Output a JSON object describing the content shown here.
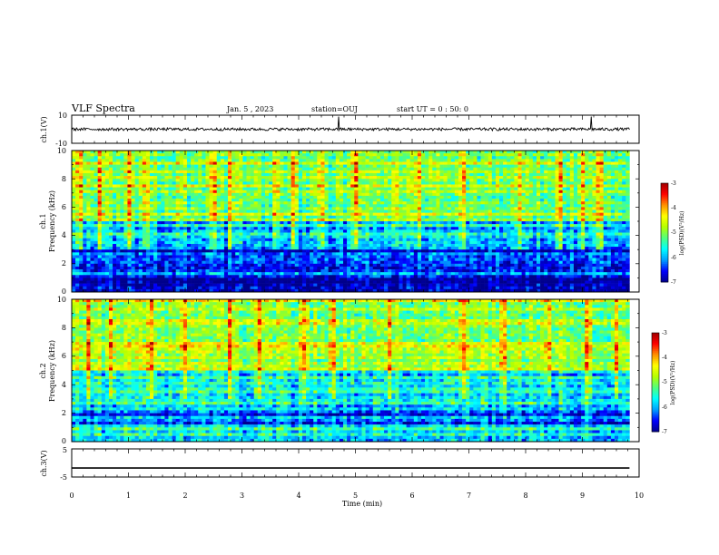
{
  "header": {
    "title": "VLF Spectra",
    "date": "Jan. 5 , 2023",
    "station": "station=OUJ",
    "start_ut": "start UT = 0 : 50: 0"
  },
  "colors": {
    "colormap": [
      "#00008c",
      "#0000ff",
      "#00a0ff",
      "#00ffff",
      "#50ff80",
      "#b4ff00",
      "#ffff00",
      "#ff9000",
      "#ff0000",
      "#a00000"
    ],
    "waveform": "#000000",
    "axis": "#000000"
  },
  "chart_data": [
    {
      "type": "line",
      "name": "ch.1 waveform",
      "ylabel": "ch.1(V)",
      "xlim": [
        0,
        10
      ],
      "ylim": [
        -10,
        10
      ],
      "y_ticks": [
        "10",
        "-10"
      ],
      "approx_level": 0,
      "approx_amplitude": 1,
      "spikes_at_min": [
        4.7,
        9.15
      ]
    },
    {
      "type": "heatmap",
      "name": "ch.1 spectrogram",
      "ylabel_channel": "ch.1",
      "ylabel": "Frequency (kHz)",
      "xlim": [
        0,
        9.83
      ],
      "ylim": [
        0,
        10
      ],
      "y_ticks": [
        "0",
        "2",
        "4",
        "6",
        "8",
        "10"
      ],
      "colorbar": {
        "label": "log(PSD)(V²/Hz)",
        "range": [
          -7,
          -3
        ],
        "ticks": [
          "-3",
          "-4",
          "-5",
          "-6",
          "-7"
        ]
      },
      "approx_band_log_psd": {
        "0-1 kHz": -6.8,
        "1-2 kHz": -6.3,
        "2-3 kHz": -6.6,
        "3-5 kHz": -5.8,
        "5-10 kHz": -4.9
      },
      "bright_vertical_bursts_min": [
        0.15,
        0.5,
        1.0,
        1.3,
        2.5,
        2.8,
        3.6,
        3.9,
        4.4,
        5.0,
        5.7,
        6.1,
        6.9,
        7.9,
        8.6,
        9.0,
        9.3
      ]
    },
    {
      "type": "heatmap",
      "name": "ch.2 spectrogram",
      "ylabel_channel": "ch.2",
      "ylabel": "Frequency (kHz)",
      "xlim": [
        0,
        9.83
      ],
      "ylim": [
        0,
        10
      ],
      "y_ticks": [
        "0",
        "2",
        "4",
        "6",
        "8",
        "10"
      ],
      "colorbar": {
        "label": "log(PSD)(V²/Hz)",
        "range": [
          -7,
          -3
        ],
        "ticks": [
          "-3",
          "-4",
          "-5",
          "-6",
          "-7"
        ]
      },
      "approx_band_log_psd": {
        "0-1 kHz": -5.6,
        "1-2 kHz": -6.2,
        "2-5 kHz": -5.8,
        "5-10 kHz": -4.8
      },
      "bright_vertical_bursts_min": [
        0.3,
        0.7,
        1.4,
        2.0,
        2.8,
        3.3,
        4.1,
        4.6,
        5.6,
        6.9,
        7.6,
        8.4,
        9.1,
        9.6
      ]
    },
    {
      "type": "line",
      "name": "ch.3 waveform",
      "ylabel": "ch.3(V)",
      "xlabel": "Time (min)",
      "xlim": [
        0,
        10
      ],
      "ylim": [
        -5,
        5
      ],
      "y_ticks": [
        "5",
        "-5"
      ],
      "x_ticks": [
        "0",
        "1",
        "2",
        "3",
        "4",
        "5",
        "6",
        "7",
        "8",
        "9",
        "10"
      ],
      "approx_level": -1.8
    }
  ]
}
